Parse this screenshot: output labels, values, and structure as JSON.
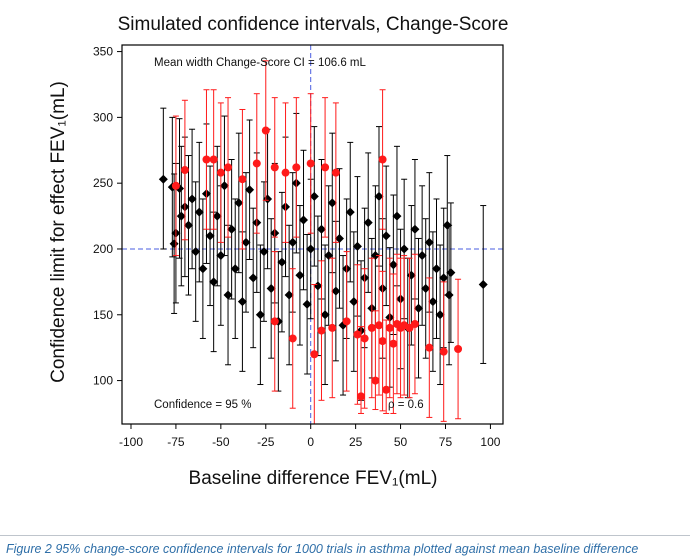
{
  "chart_data": {
    "type": "scatter",
    "title": "Simulated confidence intervals, Change-Score",
    "xlabel": "Baseline difference FEV₁(mL)",
    "ylabel": "Confidence limit for effect FEV₁(mL)",
    "xlim": [
      -105,
      107
    ],
    "ylim": [
      67,
      355
    ],
    "x_ticks": [
      -100,
      -75,
      -50,
      -25,
      0,
      25,
      50,
      75,
      100
    ],
    "y_ticks": [
      100,
      150,
      200,
      250,
      300,
      350
    ],
    "reference_lines": {
      "x": 0,
      "y": 200,
      "color": "#4a5de0",
      "style": "dashed"
    },
    "grid": false,
    "annotations": {
      "mean_width": "Mean width Change-Score CI = 106.6 mL",
      "confidence": "Confidence = 95 %",
      "rho": "ρ = 0.6"
    },
    "series": [
      {
        "color": "#000000",
        "marker": "diamond",
        "points": [
          {
            "x": -82,
            "y": 253,
            "lo": 200,
            "hi": 307
          },
          {
            "x": -77,
            "y": 247,
            "lo": 194,
            "hi": 300
          },
          {
            "x": -76,
            "y": 204,
            "lo": 151,
            "hi": 257
          },
          {
            "x": -75,
            "y": 212,
            "lo": 159,
            "hi": 265
          },
          {
            "x": -73,
            "y": 246,
            "lo": 193,
            "hi": 299
          },
          {
            "x": -72,
            "y": 225,
            "lo": 172,
            "hi": 278
          },
          {
            "x": -70,
            "y": 232,
            "lo": 179,
            "hi": 285
          },
          {
            "x": -68,
            "y": 218,
            "lo": 165,
            "hi": 271
          },
          {
            "x": -66,
            "y": 238,
            "lo": 185,
            "hi": 291
          },
          {
            "x": -64,
            "y": 198,
            "lo": 145,
            "hi": 251
          },
          {
            "x": -62,
            "y": 228,
            "lo": 175,
            "hi": 281
          },
          {
            "x": -60,
            "y": 185,
            "lo": 132,
            "hi": 238
          },
          {
            "x": -58,
            "y": 242,
            "lo": 189,
            "hi": 295
          },
          {
            "x": -56,
            "y": 210,
            "lo": 157,
            "hi": 263
          },
          {
            "x": -54,
            "y": 175,
            "lo": 122,
            "hi": 228
          },
          {
            "x": -52,
            "y": 225,
            "lo": 172,
            "hi": 278
          },
          {
            "x": -50,
            "y": 195,
            "lo": 142,
            "hi": 248
          },
          {
            "x": -48,
            "y": 248,
            "lo": 195,
            "hi": 301
          },
          {
            "x": -46,
            "y": 165,
            "lo": 112,
            "hi": 218
          },
          {
            "x": -44,
            "y": 215,
            "lo": 162,
            "hi": 268
          },
          {
            "x": -42,
            "y": 185,
            "lo": 132,
            "hi": 238
          },
          {
            "x": -40,
            "y": 235,
            "lo": 182,
            "hi": 288
          },
          {
            "x": -38,
            "y": 160,
            "lo": 107,
            "hi": 213
          },
          {
            "x": -36,
            "y": 205,
            "lo": 152,
            "hi": 258
          },
          {
            "x": -34,
            "y": 245,
            "lo": 192,
            "hi": 298
          },
          {
            "x": -32,
            "y": 178,
            "lo": 125,
            "hi": 231
          },
          {
            "x": -30,
            "y": 220,
            "lo": 167,
            "hi": 273
          },
          {
            "x": -28,
            "y": 150,
            "lo": 97,
            "hi": 203
          },
          {
            "x": -26,
            "y": 198,
            "lo": 145,
            "hi": 251
          },
          {
            "x": -24,
            "y": 238,
            "lo": 185,
            "hi": 291
          },
          {
            "x": -22,
            "y": 170,
            "lo": 117,
            "hi": 223
          },
          {
            "x": -20,
            "y": 212,
            "lo": 159,
            "hi": 265
          },
          {
            "x": -18,
            "y": 145,
            "lo": 92,
            "hi": 198
          },
          {
            "x": -16,
            "y": 190,
            "lo": 137,
            "hi": 243
          },
          {
            "x": -14,
            "y": 232,
            "lo": 179,
            "hi": 285
          },
          {
            "x": -12,
            "y": 165,
            "lo": 112,
            "hi": 218
          },
          {
            "x": -10,
            "y": 205,
            "lo": 152,
            "hi": 258
          },
          {
            "x": -8,
            "y": 250,
            "lo": 197,
            "hi": 303
          },
          {
            "x": -6,
            "y": 180,
            "lo": 127,
            "hi": 233
          },
          {
            "x": -4,
            "y": 222,
            "lo": 169,
            "hi": 275
          },
          {
            "x": -2,
            "y": 158,
            "lo": 105,
            "hi": 211
          },
          {
            "x": 0,
            "y": 200,
            "lo": 147,
            "hi": 253
          },
          {
            "x": 2,
            "y": 240,
            "lo": 187,
            "hi": 293
          },
          {
            "x": 4,
            "y": 172,
            "lo": 119,
            "hi": 225
          },
          {
            "x": 6,
            "y": 215,
            "lo": 162,
            "hi": 268
          },
          {
            "x": 8,
            "y": 150,
            "lo": 97,
            "hi": 203
          },
          {
            "x": 10,
            "y": 195,
            "lo": 142,
            "hi": 248
          },
          {
            "x": 12,
            "y": 235,
            "lo": 182,
            "hi": 288
          },
          {
            "x": 14,
            "y": 168,
            "lo": 115,
            "hi": 221
          },
          {
            "x": 16,
            "y": 208,
            "lo": 155,
            "hi": 261
          },
          {
            "x": 18,
            "y": 142,
            "lo": 89,
            "hi": 195
          },
          {
            "x": 20,
            "y": 185,
            "lo": 132,
            "hi": 238
          },
          {
            "x": 22,
            "y": 228,
            "lo": 175,
            "hi": 281
          },
          {
            "x": 24,
            "y": 160,
            "lo": 107,
            "hi": 213
          },
          {
            "x": 26,
            "y": 202,
            "lo": 149,
            "hi": 255
          },
          {
            "x": 28,
            "y": 138,
            "lo": 85,
            "hi": 191
          },
          {
            "x": 30,
            "y": 178,
            "lo": 125,
            "hi": 231
          },
          {
            "x": 32,
            "y": 220,
            "lo": 167,
            "hi": 273
          },
          {
            "x": 34,
            "y": 155,
            "lo": 102,
            "hi": 208
          },
          {
            "x": 36,
            "y": 195,
            "lo": 142,
            "hi": 248
          },
          {
            "x": 38,
            "y": 240,
            "lo": 187,
            "hi": 293
          },
          {
            "x": 40,
            "y": 170,
            "lo": 117,
            "hi": 223
          },
          {
            "x": 42,
            "y": 210,
            "lo": 157,
            "hi": 263
          },
          {
            "x": 44,
            "y": 148,
            "lo": 95,
            "hi": 201
          },
          {
            "x": 46,
            "y": 188,
            "lo": 135,
            "hi": 241
          },
          {
            "x": 48,
            "y": 225,
            "lo": 172,
            "hi": 278
          },
          {
            "x": 50,
            "y": 162,
            "lo": 109,
            "hi": 215
          },
          {
            "x": 52,
            "y": 200,
            "lo": 147,
            "hi": 253
          },
          {
            "x": 54,
            "y": 140,
            "lo": 87,
            "hi": 193
          },
          {
            "x": 56,
            "y": 180,
            "lo": 127,
            "hi": 233
          },
          {
            "x": 58,
            "y": 215,
            "lo": 162,
            "hi": 268
          },
          {
            "x": 60,
            "y": 155,
            "lo": 102,
            "hi": 208
          },
          {
            "x": 62,
            "y": 195,
            "lo": 142,
            "hi": 248
          },
          {
            "x": 64,
            "y": 170,
            "lo": 117,
            "hi": 223
          },
          {
            "x": 66,
            "y": 205,
            "lo": 152,
            "hi": 258
          },
          {
            "x": 68,
            "y": 160,
            "lo": 107,
            "hi": 213
          },
          {
            "x": 70,
            "y": 185,
            "lo": 132,
            "hi": 238
          },
          {
            "x": 72,
            "y": 150,
            "lo": 97,
            "hi": 203
          },
          {
            "x": 74,
            "y": 178,
            "lo": 125,
            "hi": 231
          },
          {
            "x": 76,
            "y": 218,
            "lo": 165,
            "hi": 271
          },
          {
            "x": 77,
            "y": 165,
            "lo": 112,
            "hi": 218
          },
          {
            "x": 78,
            "y": 182,
            "lo": 129,
            "hi": 235
          },
          {
            "x": 96,
            "y": 173,
            "lo": 113,
            "hi": 233
          }
        ]
      },
      {
        "color": "#ff1a1a",
        "marker": "circle",
        "points": [
          {
            "x": -75,
            "y": 248,
            "lo": 195,
            "hi": 301
          },
          {
            "x": -70,
            "y": 260,
            "lo": 207,
            "hi": 313
          },
          {
            "x": -58,
            "y": 268,
            "lo": 215,
            "hi": 321
          },
          {
            "x": -54,
            "y": 268,
            "lo": 215,
            "hi": 321
          },
          {
            "x": -50,
            "y": 258,
            "lo": 205,
            "hi": 311
          },
          {
            "x": -46,
            "y": 262,
            "lo": 209,
            "hi": 315
          },
          {
            "x": -38,
            "y": 253,
            "lo": 200,
            "hi": 306
          },
          {
            "x": -30,
            "y": 265,
            "lo": 212,
            "hi": 318
          },
          {
            "x": -25,
            "y": 290,
            "lo": 237,
            "hi": 343
          },
          {
            "x": -20,
            "y": 262,
            "lo": 209,
            "hi": 315
          },
          {
            "x": -14,
            "y": 258,
            "lo": 205,
            "hi": 311
          },
          {
            "x": -8,
            "y": 262,
            "lo": 209,
            "hi": 315
          },
          {
            "x": 0,
            "y": 265,
            "lo": 212,
            "hi": 318
          },
          {
            "x": 8,
            "y": 262,
            "lo": 209,
            "hi": 315
          },
          {
            "x": 14,
            "y": 258,
            "lo": 205,
            "hi": 311
          },
          {
            "x": 40,
            "y": 268,
            "lo": 215,
            "hi": 321
          },
          {
            "x": -20,
            "y": 145,
            "lo": 92,
            "hi": 198
          },
          {
            "x": -10,
            "y": 132,
            "lo": 79,
            "hi": 185
          },
          {
            "x": 2,
            "y": 120,
            "lo": 67,
            "hi": 173
          },
          {
            "x": 6,
            "y": 138,
            "lo": 85,
            "hi": 191
          },
          {
            "x": 12,
            "y": 140,
            "lo": 87,
            "hi": 193
          },
          {
            "x": 20,
            "y": 145,
            "lo": 92,
            "hi": 198
          },
          {
            "x": 26,
            "y": 135,
            "lo": 82,
            "hi": 188
          },
          {
            "x": 28,
            "y": 88,
            "lo": 75,
            "hi": 141
          },
          {
            "x": 30,
            "y": 132,
            "lo": 79,
            "hi": 185
          },
          {
            "x": 34,
            "y": 140,
            "lo": 87,
            "hi": 193
          },
          {
            "x": 36,
            "y": 100,
            "lo": 78,
            "hi": 153
          },
          {
            "x": 38,
            "y": 142,
            "lo": 89,
            "hi": 195
          },
          {
            "x": 40,
            "y": 130,
            "lo": 77,
            "hi": 183
          },
          {
            "x": 42,
            "y": 93,
            "lo": 75,
            "hi": 146
          },
          {
            "x": 44,
            "y": 140,
            "lo": 87,
            "hi": 193
          },
          {
            "x": 46,
            "y": 128,
            "lo": 75,
            "hi": 181
          },
          {
            "x": 48,
            "y": 143,
            "lo": 90,
            "hi": 196
          },
          {
            "x": 50,
            "y": 140,
            "lo": 87,
            "hi": 193
          },
          {
            "x": 52,
            "y": 142,
            "lo": 89,
            "hi": 195
          },
          {
            "x": 55,
            "y": 140,
            "lo": 87,
            "hi": 193
          },
          {
            "x": 58,
            "y": 143,
            "lo": 90,
            "hi": 196
          },
          {
            "x": 66,
            "y": 125,
            "lo": 72,
            "hi": 178
          },
          {
            "x": 74,
            "y": 122,
            "lo": 69,
            "hi": 175
          },
          {
            "x": 82,
            "y": 124,
            "lo": 71,
            "hi": 177
          }
        ]
      }
    ]
  },
  "caption": "Figure 2 95% change-score confidence intervals for 1000 trials in asthma plotted against mean baseline difference"
}
